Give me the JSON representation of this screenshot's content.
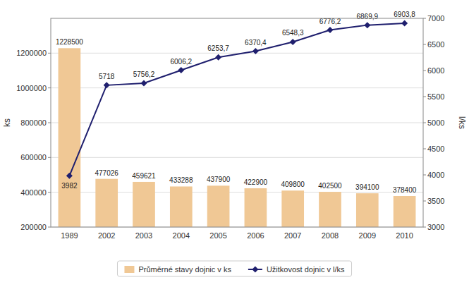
{
  "chart_data": {
    "type": "bar",
    "categories": [
      "1989",
      "2002",
      "2003",
      "2004",
      "2005",
      "2006",
      "2007",
      "2008",
      "2009",
      "2010"
    ],
    "series": [
      {
        "name": "Průměrné stavy dojnic v ks",
        "type": "bar",
        "color": "#f0c895",
        "data_labels": true,
        "values": [
          1228500,
          477026,
          459621,
          433288,
          437900,
          422900,
          409800,
          402500,
          394100,
          378400
        ]
      },
      {
        "name": "Užitkovost dojnic v l/ks",
        "type": "line",
        "axis": "y2",
        "color": "#1f1f6e",
        "marker": "diamond",
        "data_labels": true,
        "values": [
          3982,
          5718,
          5756.2,
          6006.2,
          6253.7,
          6370.4,
          6548.3,
          6776.2,
          6869.9,
          6903.8
        ],
        "value_labels": [
          "3982",
          "5718",
          "5756,2",
          "6006,2",
          "6253,7",
          "6370,4",
          "6548,3",
          "6776,2",
          "6869,9",
          "6903,8"
        ]
      }
    ],
    "ylabel": "ks",
    "y2label": "l/ks",
    "ylim": [
      200000,
      1400000
    ],
    "yticks": [
      200000,
      400000,
      600000,
      800000,
      1000000,
      1200000
    ],
    "y2lim": [
      3000,
      7000
    ],
    "y2ticks": [
      3000,
      3500,
      4000,
      4500,
      5000,
      5500,
      6000,
      6500,
      7000
    ],
    "grid": true,
    "legend": "bottom"
  }
}
